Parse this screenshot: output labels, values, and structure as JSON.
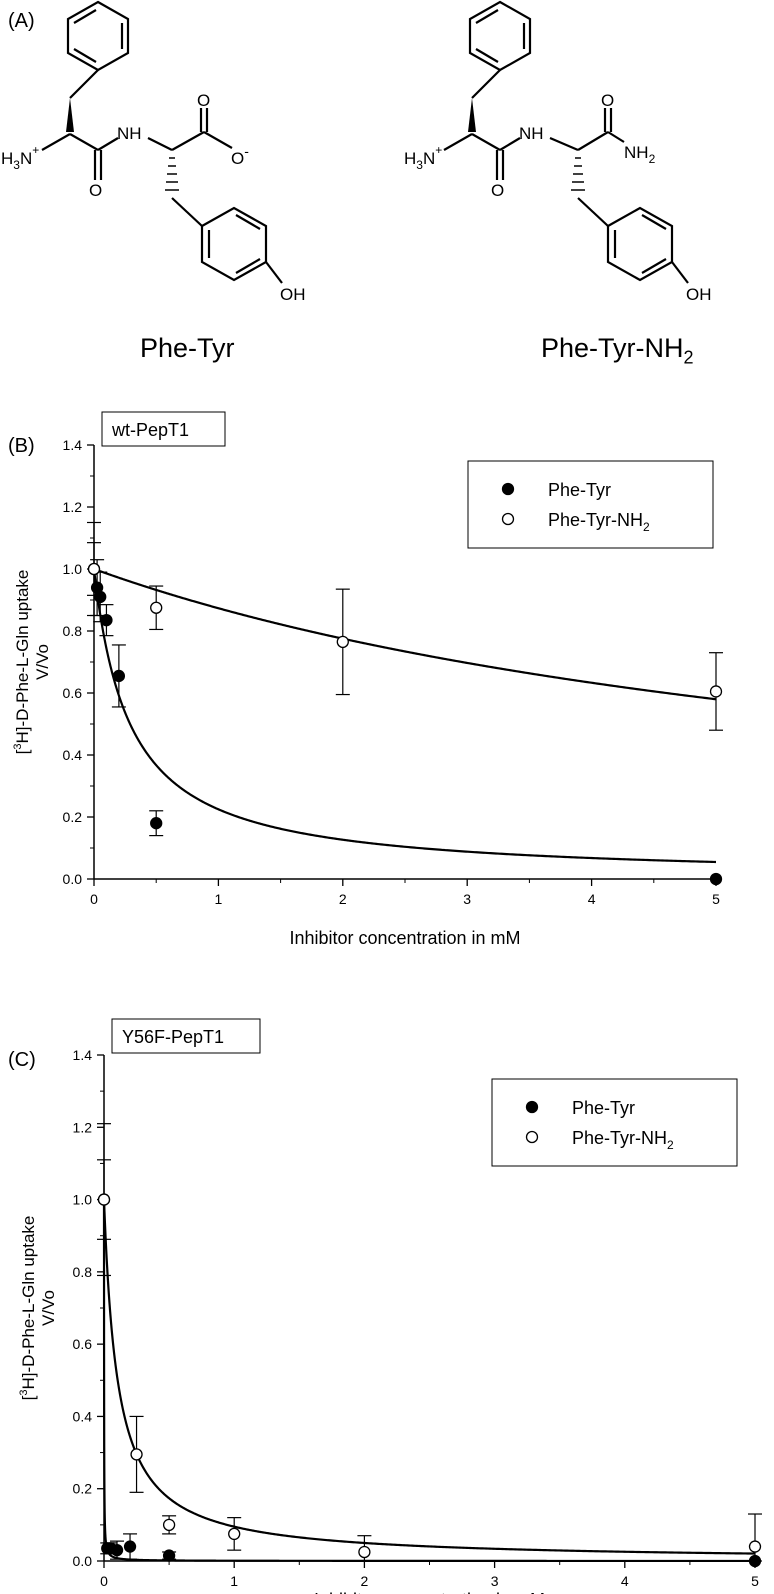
{
  "panel_a": {
    "label": "(A)",
    "compounds": [
      {
        "name_main": "Phe-Tyr",
        "name_sub": "",
        "name_tail": "",
        "atoms": {
          "amine": "H",
          "amine_sub": "3",
          "amine_n": "N",
          "amine_charge": "+",
          "nh": "NH",
          "o1": "O",
          "o2": "O",
          "term": "O",
          "term_charge": "-",
          "oh": "OH"
        }
      },
      {
        "name_main": "Phe-Tyr-NH",
        "name_sub": "2",
        "name_tail": "",
        "atoms": {
          "amine": "H",
          "amine_sub": "3",
          "amine_n": "N",
          "amine_charge": "+",
          "nh": "NH",
          "o1": "O",
          "o2": "O",
          "term": "NH",
          "term_sub": "2",
          "oh": "OH"
        }
      }
    ]
  },
  "chart_data": [
    {
      "panel_label": "(B)",
      "type": "scatter",
      "title": "wt-PepT1",
      "xlabel": "Inhibitor concentration in mM",
      "ylabel_line1_pre": "[",
      "ylabel_line1_sup": "3",
      "ylabel_line1_post": "H]-D-Phe-L-Gln uptake",
      "ylabel_line2": "V/Vo",
      "xlim": [
        0,
        5
      ],
      "ylim": [
        0,
        1.4
      ],
      "xticks": [
        "0",
        "1",
        "2",
        "3",
        "4",
        "5"
      ],
      "yticks": [
        "0.0",
        "0.2",
        "0.4",
        "0.6",
        "0.8",
        "1.0",
        "1.2",
        "1.4"
      ],
      "legend_position": "top-right",
      "series": [
        {
          "name": "Phe-Tyr",
          "name_main": "Phe-Tyr",
          "name_sub": "",
          "marker": "filled-circle",
          "x": [
            0,
            0.025,
            0.05,
            0.1,
            0.2,
            0.5,
            5
          ],
          "y": [
            1.0,
            0.94,
            0.91,
            0.835,
            0.655,
            0.18,
            0.0
          ],
          "err": [
            0.15,
            0.09,
            0.08,
            0.05,
            0.1,
            0.04,
            0
          ],
          "fit": {
            "model": "ic50",
            "ic50": 0.29
          }
        },
        {
          "name": "Phe-Tyr-NH2",
          "name_main": "Phe-Tyr-NH",
          "name_sub": "2",
          "marker": "open-circle",
          "x": [
            0,
            0.5,
            2,
            5
          ],
          "y": [
            1.0,
            0.875,
            0.765,
            0.605
          ],
          "err": [
            0.085,
            0.07,
            0.17,
            0.125
          ],
          "fit": {
            "model": "ic50",
            "ic50": 6.9
          }
        }
      ]
    },
    {
      "panel_label": "(C)",
      "type": "scatter",
      "title": "Y56F-PepT1",
      "xlabel": "Inhibitor concentration in mM",
      "ylabel_line1_pre": "[",
      "ylabel_line1_sup": "3",
      "ylabel_line1_post": "H]-D-Phe-L-Gln uptake",
      "ylabel_line2": "V/Vo",
      "xlim": [
        0,
        5
      ],
      "ylim": [
        0,
        1.4
      ],
      "xticks": [
        "0",
        "1",
        "2",
        "3",
        "4",
        "5"
      ],
      "yticks": [
        "0.0",
        "0.2",
        "0.4",
        "0.6",
        "0.8",
        "1.0",
        "1.2",
        "1.4"
      ],
      "legend_position": "top-right",
      "series": [
        {
          "name": "Phe-Tyr",
          "name_main": "Phe-Tyr",
          "name_sub": "",
          "marker": "filled-circle",
          "x": [
            0,
            0.025,
            0.05,
            0.1,
            0.2,
            0.5,
            5
          ],
          "y": [
            1.0,
            0.035,
            0.035,
            0.03,
            0.04,
            0.015,
            0.0
          ],
          "err": [
            0.21,
            0.015,
            0.015,
            0.025,
            0.035,
            0.01,
            0
          ],
          "fit": {
            "model": "ic50",
            "ic50": 0.0008
          }
        },
        {
          "name": "Phe-Tyr-NH2",
          "name_main": "Phe-Tyr-NH",
          "name_sub": "2",
          "marker": "open-circle",
          "x": [
            0,
            0.25,
            0.5,
            1,
            2,
            5
          ],
          "y": [
            1.0,
            0.295,
            0.1,
            0.075,
            0.025,
            0.04
          ],
          "err": [
            0.11,
            0.105,
            0.025,
            0.045,
            0.045,
            0.09
          ],
          "fit": {
            "model": "ic50",
            "ic50": 0.105
          }
        }
      ]
    }
  ]
}
